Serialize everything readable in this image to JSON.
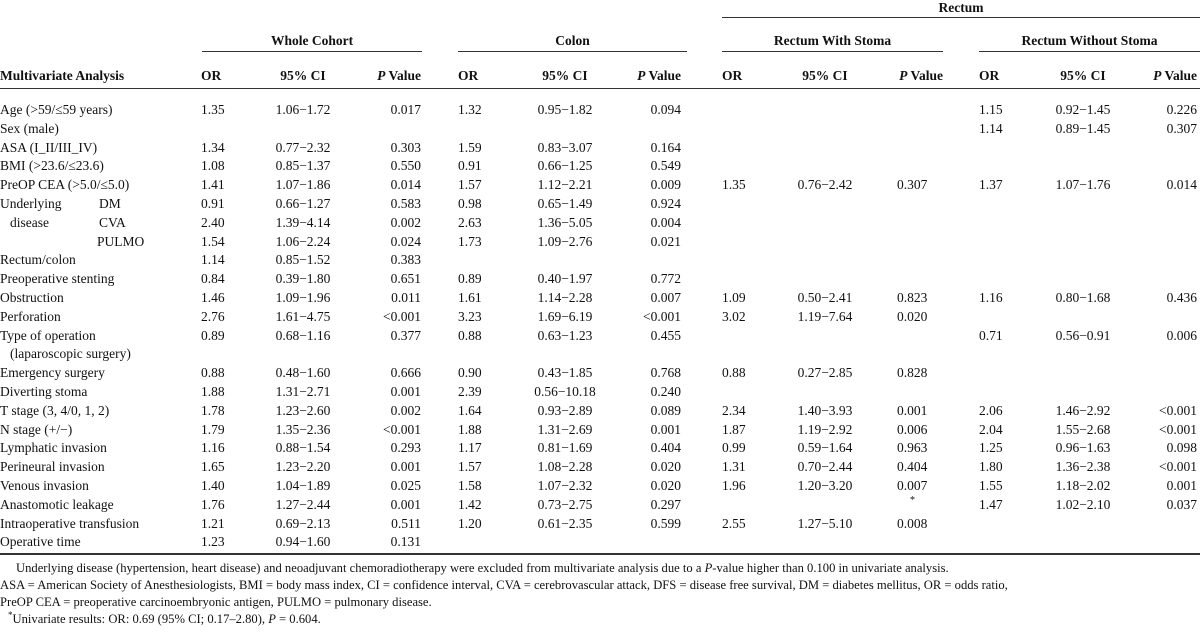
{
  "header": {
    "rectum": "Rectum",
    "groups": [
      "Whole Cohort",
      "Colon",
      "Rectum With Stoma",
      "Rectum Without Stoma"
    ],
    "row_label": "Multivariate Analysis",
    "col_or": "OR",
    "col_ci": "95% CI",
    "col_p_italic": "P",
    "col_p": " Value"
  },
  "rows": [
    {
      "label": "Age (>59/≤59 years)",
      "sub": "",
      "v": [
        [
          "1.35",
          "1.06−1.72",
          "0.017"
        ],
        [
          "1.32",
          "0.95−1.82",
          "0.094"
        ],
        [
          "",
          "",
          ""
        ],
        [
          "1.15",
          "0.92−1.45",
          "0.226"
        ]
      ]
    },
    {
      "label": "Sex (male)",
      "sub": "",
      "v": [
        [
          "",
          "",
          ""
        ],
        [
          "",
          "",
          ""
        ],
        [
          "",
          "",
          ""
        ],
        [
          "1.14",
          "0.89−1.45",
          "0.307"
        ]
      ]
    },
    {
      "label": "ASA (I_II/III_IV)",
      "sub": "",
      "v": [
        [
          "1.34",
          "0.77−2.32",
          "0.303"
        ],
        [
          "1.59",
          "0.83−3.07",
          "0.164"
        ],
        [
          "",
          "",
          ""
        ],
        [
          "",
          "",
          ""
        ]
      ]
    },
    {
      "label": "BMI (>23.6/≤23.6)",
      "sub": "",
      "v": [
        [
          "1.08",
          "0.85−1.37",
          "0.550"
        ],
        [
          "0.91",
          "0.66−1.25",
          "0.549"
        ],
        [
          "",
          "",
          ""
        ],
        [
          "",
          "",
          ""
        ]
      ]
    },
    {
      "label": "PreOP CEA (>5.0/≤5.0)",
      "sub": "",
      "v": [
        [
          "1.41",
          "1.07−1.86",
          "0.014"
        ],
        [
          "1.57",
          "1.12−2.21",
          "0.009"
        ],
        [
          "1.35",
          "0.76−2.42",
          "0.307"
        ],
        [
          "1.37",
          "1.07−1.76",
          "0.014"
        ]
      ]
    },
    {
      "label": "Underlying",
      "sub": "DM",
      "v": [
        [
          "0.91",
          "0.66−1.27",
          "0.583"
        ],
        [
          "0.98",
          "0.65−1.49",
          "0.924"
        ],
        [
          "",
          "",
          ""
        ],
        [
          "",
          "",
          ""
        ]
      ]
    },
    {
      "label": "disease",
      "sub": "CVA",
      "indent": true,
      "v": [
        [
          "2.40",
          "1.39−4.14",
          "0.002"
        ],
        [
          "2.63",
          "1.36−5.05",
          "0.004"
        ],
        [
          "",
          "",
          ""
        ],
        [
          "",
          "",
          ""
        ]
      ]
    },
    {
      "label": "",
      "sub": "PULMO",
      "v": [
        [
          "1.54",
          "1.06−2.24",
          "0.024"
        ],
        [
          "1.73",
          "1.09−2.76",
          "0.021"
        ],
        [
          "",
          "",
          ""
        ],
        [
          "",
          "",
          ""
        ]
      ]
    },
    {
      "label": "Rectum/colon",
      "sub": "",
      "v": [
        [
          "1.14",
          "0.85−1.52",
          "0.383"
        ],
        [
          "",
          "",
          ""
        ],
        [
          "",
          "",
          ""
        ],
        [
          "",
          "",
          ""
        ]
      ]
    },
    {
      "label": "Preoperative stenting",
      "sub": "",
      "v": [
        [
          "0.84",
          "0.39−1.80",
          "0.651"
        ],
        [
          "0.89",
          "0.40−1.97",
          "0.772"
        ],
        [
          "",
          "",
          ""
        ],
        [
          "",
          "",
          ""
        ]
      ]
    },
    {
      "label": "Obstruction",
      "sub": "",
      "v": [
        [
          "1.46",
          "1.09−1.96",
          "0.011"
        ],
        [
          "1.61",
          "1.14−2.28",
          "0.007"
        ],
        [
          "1.09",
          "0.50−2.41",
          "0.823"
        ],
        [
          "1.16",
          "0.80−1.68",
          "0.436"
        ]
      ]
    },
    {
      "label": "Perforation",
      "sub": "",
      "v": [
        [
          "2.76",
          "1.61−4.75",
          "<0.001"
        ],
        [
          "3.23",
          "1.69−6.19",
          "<0.001"
        ],
        [
          "3.02",
          "1.19−7.64",
          "0.020"
        ],
        [
          "",
          "",
          ""
        ]
      ]
    },
    {
      "label": "Type of operation",
      "sub": "",
      "v": [
        [
          "0.89",
          "0.68−1.16",
          "0.377"
        ],
        [
          "0.88",
          "0.63−1.23",
          "0.455"
        ],
        [
          "",
          "",
          ""
        ],
        [
          "0.71",
          "0.56−0.91",
          "0.006"
        ]
      ]
    },
    {
      "label": "(laparoscopic surgery)",
      "sub": "",
      "indent": true,
      "v": [
        [
          "",
          "",
          ""
        ],
        [
          "",
          "",
          ""
        ],
        [
          "",
          "",
          ""
        ],
        [
          "",
          "",
          ""
        ]
      ]
    },
    {
      "label": "Emergency surgery",
      "sub": "",
      "v": [
        [
          "0.88",
          "0.48−1.60",
          "0.666"
        ],
        [
          "0.90",
          "0.43−1.85",
          "0.768"
        ],
        [
          "0.88",
          "0.27−2.85",
          "0.828"
        ],
        [
          "",
          "",
          ""
        ]
      ]
    },
    {
      "label": "Diverting stoma",
      "sub": "",
      "v": [
        [
          "1.88",
          "1.31−2.71",
          "0.001"
        ],
        [
          "2.39",
          "0.56−10.18",
          "0.240"
        ],
        [
          "",
          "",
          ""
        ],
        [
          "",
          "",
          ""
        ]
      ]
    },
    {
      "label": "T stage (3, 4/0, 1, 2)",
      "sub": "",
      "v": [
        [
          "1.78",
          "1.23−2.60",
          "0.002"
        ],
        [
          "1.64",
          "0.93−2.89",
          "0.089"
        ],
        [
          "2.34",
          "1.40−3.93",
          "0.001"
        ],
        [
          "2.06",
          "1.46−2.92",
          "<0.001"
        ]
      ]
    },
    {
      "label": "N stage (+/−)",
      "sub": "",
      "v": [
        [
          "1.79",
          "1.35−2.36",
          "<0.001"
        ],
        [
          "1.88",
          "1.31−2.69",
          "0.001"
        ],
        [
          "1.87",
          "1.19−2.92",
          "0.006"
        ],
        [
          "2.04",
          "1.55−2.68",
          "<0.001"
        ]
      ]
    },
    {
      "label": "Lymphatic invasion",
      "sub": "",
      "v": [
        [
          "1.16",
          "0.88−1.54",
          "0.293"
        ],
        [
          "1.17",
          "0.81−1.69",
          "0.404"
        ],
        [
          "0.99",
          "0.59−1.64",
          "0.963"
        ],
        [
          "1.25",
          "0.96−1.63",
          "0.098"
        ]
      ]
    },
    {
      "label": "Perineural invasion",
      "sub": "",
      "v": [
        [
          "1.65",
          "1.23−2.20",
          "0.001"
        ],
        [
          "1.57",
          "1.08−2.28",
          "0.020"
        ],
        [
          "1.31",
          "0.70−2.44",
          "0.404"
        ],
        [
          "1.80",
          "1.36−2.38",
          "<0.001"
        ]
      ]
    },
    {
      "label": "Venous invasion",
      "sub": "",
      "v": [
        [
          "1.40",
          "1.04−1.89",
          "0.025"
        ],
        [
          "1.58",
          "1.07−2.32",
          "0.020"
        ],
        [
          "1.96",
          "1.20−3.20",
          "0.007"
        ],
        [
          "1.55",
          "1.18−2.02",
          "0.001"
        ]
      ]
    },
    {
      "label": "Anastomotic leakage",
      "sub": "",
      "v": [
        [
          "1.76",
          "1.27−2.44",
          "0.001"
        ],
        [
          "1.42",
          "0.73−2.75",
          "0.297"
        ],
        [
          "",
          "",
          "*"
        ],
        [
          "1.47",
          "1.02−2.10",
          "0.037"
        ]
      ]
    },
    {
      "label": "Intraoperative transfusion",
      "sub": "",
      "v": [
        [
          "1.21",
          "0.69−2.13",
          "0.511"
        ],
        [
          "1.20",
          "0.61−2.35",
          "0.599"
        ],
        [
          "2.55",
          "1.27−5.10",
          "0.008"
        ],
        [
          "",
          "",
          ""
        ]
      ]
    },
    {
      "label": "Operative time",
      "sub": "",
      "v": [
        [
          "1.23",
          "0.94−1.60",
          "0.131"
        ],
        [
          "",
          "",
          ""
        ],
        [
          "",
          "",
          ""
        ],
        [
          "",
          "",
          ""
        ]
      ]
    }
  ],
  "footnotes": {
    "line1_a": "Underlying disease (hypertension, heart disease) and neoadjuvant chemoradiotherapy were excluded from multivariate analysis due to a ",
    "line1_p": "P",
    "line1_b": "-value higher than 0.100 in univariate analysis.",
    "line2": "ASA = American Society of Anesthesiologists, BMI = body mass index, CI = confidence interval, CVA = cerebrovascular attack, DFS = disease free survival, DM = diabetes mellitus, OR = odds ratio,",
    "line3": "PreOP CEA = preoperative carcinoembryonic antigen, PULMO = pulmonary disease.",
    "star_mark": "*",
    "star_text_a": "Univariate results: OR: 0.69 (95% CI; 0.17–2.80), ",
    "star_p": "P",
    "star_text_b": " = 0.604."
  }
}
